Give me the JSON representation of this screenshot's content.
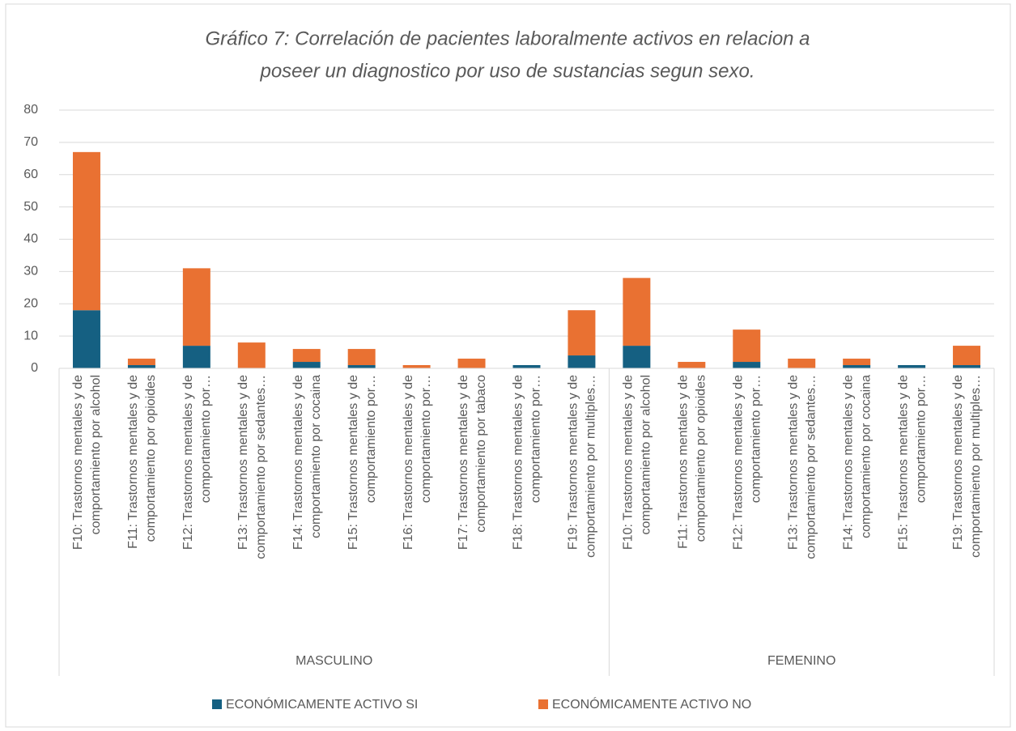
{
  "chart_data": {
    "type": "stacked_bar",
    "title": [
      "Gráfico 7: Correlación de pacientes laboralmente activos en relacion a",
      "poseer un diagnostico por uso de sustancias segun sexo."
    ],
    "groups": [
      {
        "name": "MASCULINO",
        "categories": [
          [
            "F10: Trastornos mentales y de",
            "comportamiento por alcohol"
          ],
          [
            "F11: Trastornos mentales y de",
            "comportamiento por opioides"
          ],
          [
            "F12: Trastornos mentales y de",
            "comportamiento por…"
          ],
          [
            "F13: Trastornos mentales y de",
            "comportamiento por sedantes…"
          ],
          [
            "F14: Trastornos mentales y de",
            "comportamiento por cocaina"
          ],
          [
            "F15: Trastornos mentales y de",
            "comportamiento por…"
          ],
          [
            "F16: Trastornos mentales y de",
            "comportamiento por…"
          ],
          [
            "F17: Trastornos mentales y de",
            "comportamiento por  tabaco"
          ],
          [
            "F18: Trastornos mentales y de",
            "comportamiento por…"
          ],
          [
            "F19: Trastornos mentales y de",
            "comportamiento por multiples…"
          ]
        ]
      },
      {
        "name": "FEMENINO",
        "categories": [
          [
            "F10: Trastornos mentales y de",
            "comportamiento por alcohol"
          ],
          [
            "F11: Trastornos mentales y de",
            "comportamiento por opioides"
          ],
          [
            "F12: Trastornos mentales y de",
            "comportamiento por…"
          ],
          [
            "F13: Trastornos mentales y de",
            "comportamiento por sedantes…"
          ],
          [
            "F14: Trastornos mentales y de",
            "comportamiento por cocaina"
          ],
          [
            "F15: Trastornos mentales y de",
            "comportamiento por…"
          ],
          [
            "F19: Trastornos mentales y de",
            "comportamiento por multiples…"
          ]
        ]
      }
    ],
    "series": [
      {
        "name": "ECONÓMICAMENTE ACTIVO SI",
        "color": "#156082",
        "values": [
          18,
          1,
          7,
          0,
          2,
          1,
          0,
          0,
          1,
          4,
          7,
          0,
          2,
          0,
          1,
          1,
          1
        ]
      },
      {
        "name": "ECONÓMICAMENTE ACTIVO NO",
        "color": "#e97132",
        "values": [
          49,
          2,
          24,
          8,
          4,
          5,
          1,
          3,
          0,
          14,
          21,
          2,
          10,
          3,
          2,
          0,
          6
        ]
      }
    ],
    "ylim": [
      0,
      80
    ],
    "yticks": [
      0,
      10,
      20,
      30,
      40,
      50,
      60,
      70,
      80
    ],
    "grid": true,
    "legend": "bottom"
  }
}
